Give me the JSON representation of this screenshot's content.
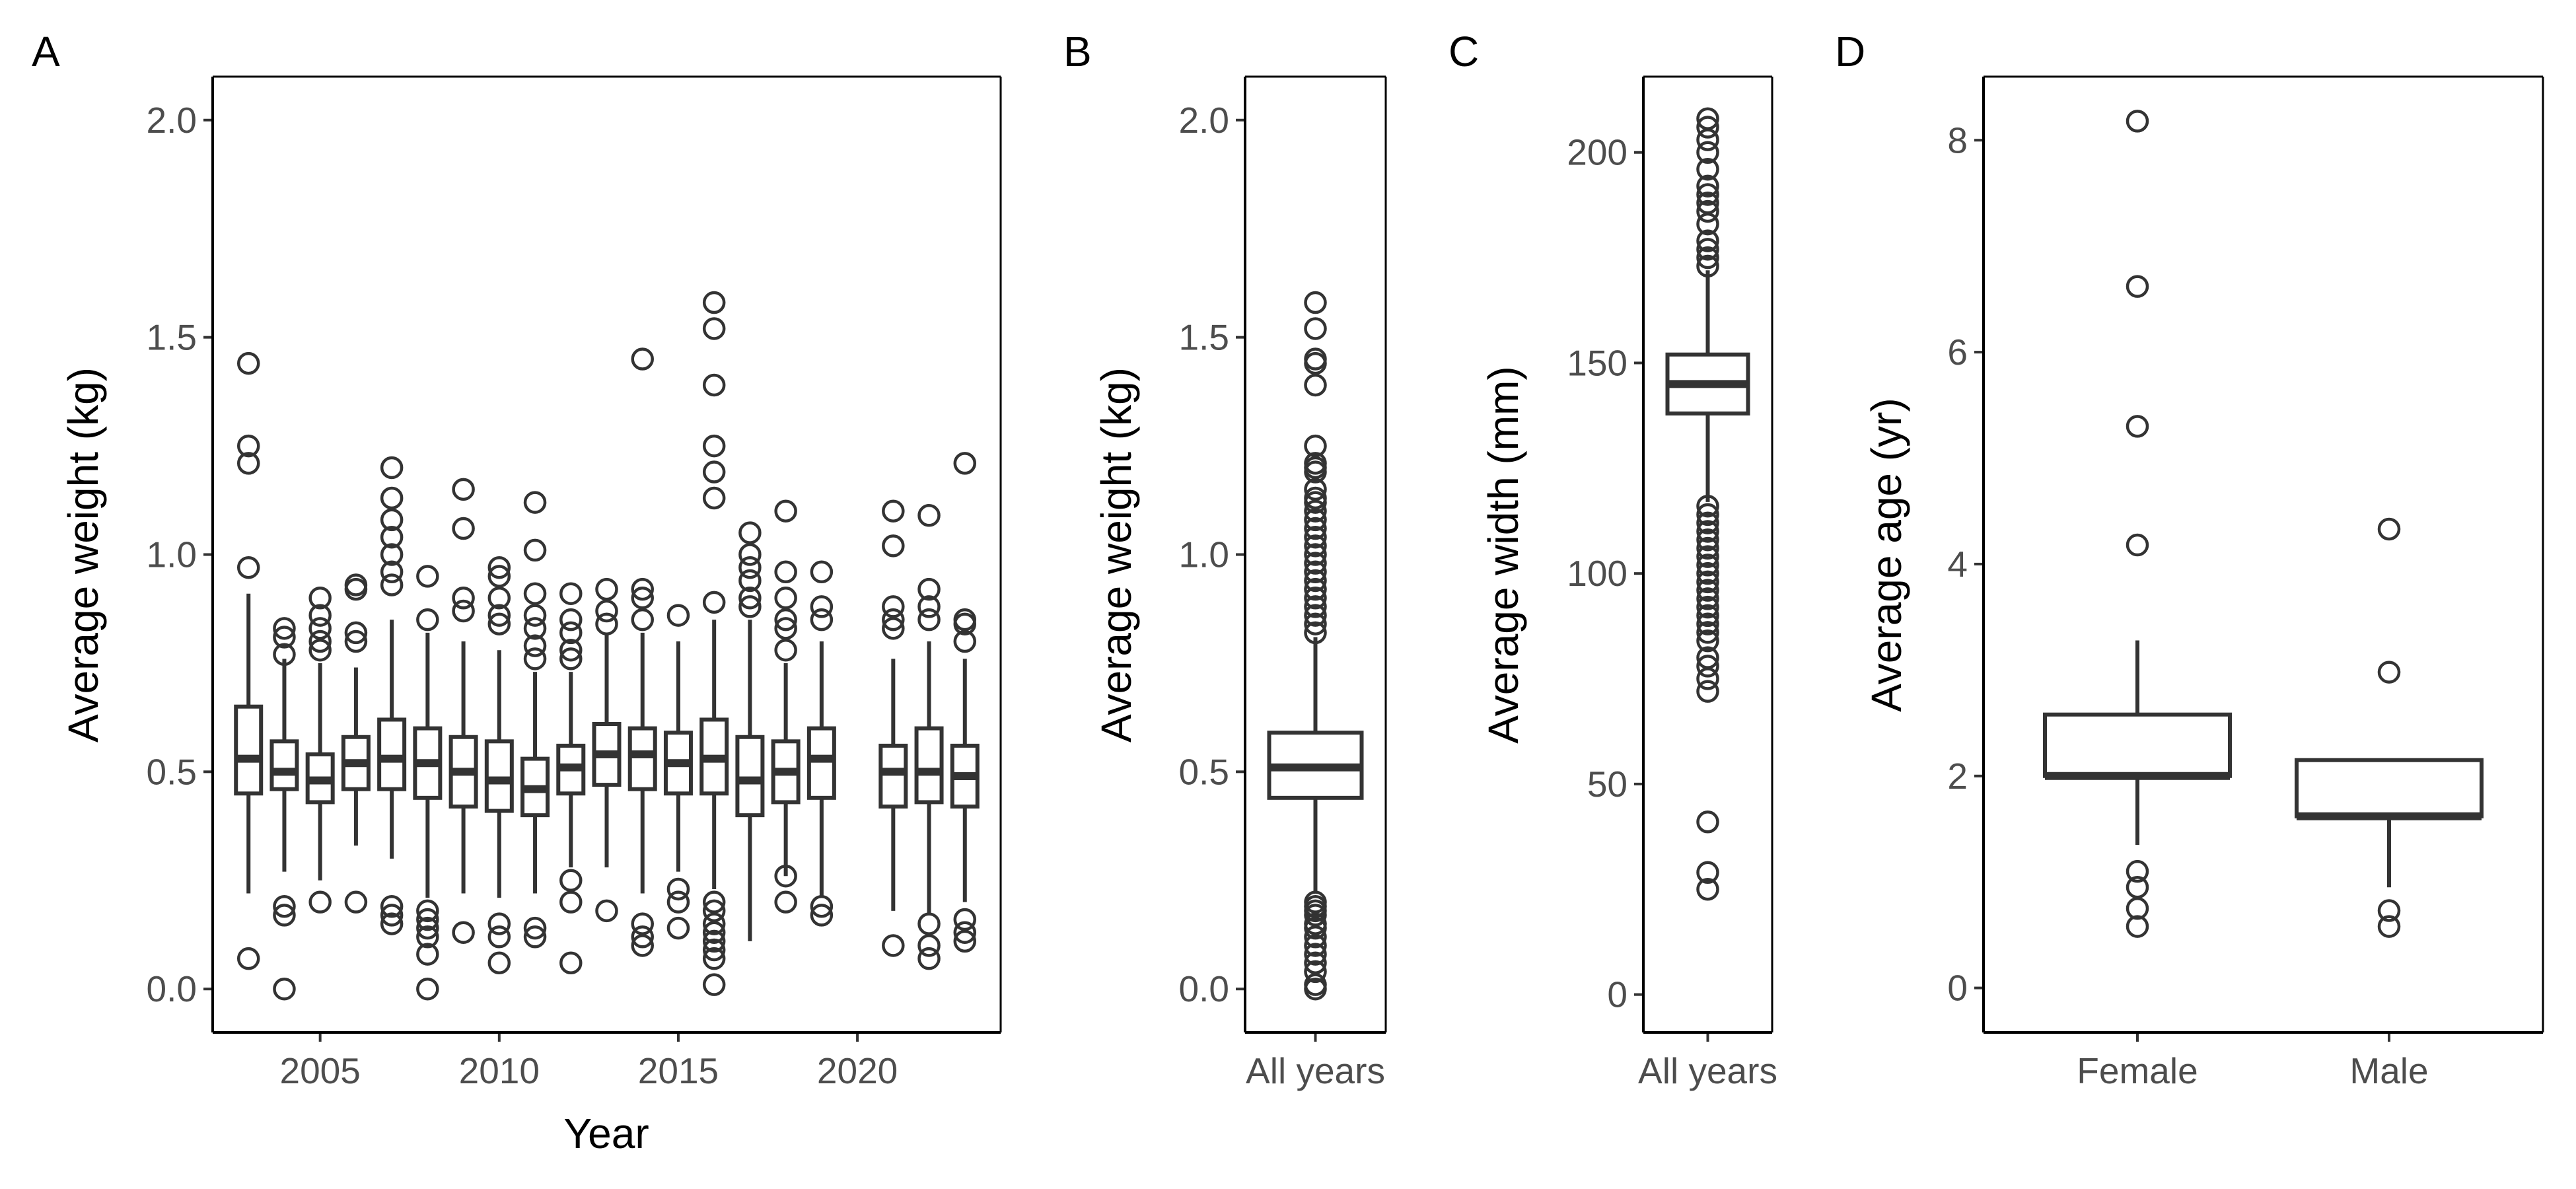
{
  "chart_data": [
    {
      "panel": "A",
      "type": "box",
      "xlabel": "Year",
      "ylabel": "Average weight (kg)",
      "ylim": [
        -0.1,
        2.1
      ],
      "xlim": [
        2002,
        2024
      ],
      "yticks": [
        0.0,
        0.5,
        1.0,
        1.5,
        2.0
      ],
      "yticklabels": [
        "0.0",
        "0.5",
        "1.0",
        "1.5",
        "2.0"
      ],
      "xticks": [
        2005,
        2010,
        2015,
        2020
      ],
      "xticklabels": [
        "2005",
        "2010",
        "2015",
        "2020"
      ],
      "boxes": [
        {
          "x": 2003,
          "q1": 0.45,
          "median": 0.53,
          "q3": 0.65,
          "lo": 0.22,
          "hi": 0.91,
          "outliers": [
            0.07,
            0.97,
            1.21,
            1.25,
            1.44
          ]
        },
        {
          "x": 2004,
          "q1": 0.46,
          "median": 0.5,
          "q3": 0.57,
          "lo": 0.27,
          "hi": 0.76,
          "outliers": [
            0.0,
            0.17,
            0.19,
            0.77,
            0.81,
            0.83
          ]
        },
        {
          "x": 2005,
          "q1": 0.43,
          "median": 0.48,
          "q3": 0.54,
          "lo": 0.25,
          "hi": 0.75,
          "outliers": [
            0.2,
            0.78,
            0.8,
            0.83,
            0.86,
            0.9
          ]
        },
        {
          "x": 2006,
          "q1": 0.46,
          "median": 0.52,
          "q3": 0.58,
          "lo": 0.33,
          "hi": 0.74,
          "outliers": [
            0.2,
            0.8,
            0.82,
            0.92,
            0.93
          ]
        },
        {
          "x": 2007,
          "q1": 0.46,
          "median": 0.53,
          "q3": 0.62,
          "lo": 0.3,
          "hi": 0.85,
          "outliers": [
            0.15,
            0.17,
            0.19,
            0.93,
            0.96,
            1.0,
            1.04,
            1.08,
            1.13,
            1.2
          ]
        },
        {
          "x": 2008,
          "q1": 0.44,
          "median": 0.52,
          "q3": 0.6,
          "lo": 0.21,
          "hi": 0.82,
          "outliers": [
            0.0,
            0.08,
            0.12,
            0.14,
            0.16,
            0.18,
            0.85,
            0.95
          ]
        },
        {
          "x": 2009,
          "q1": 0.42,
          "median": 0.5,
          "q3": 0.58,
          "lo": 0.22,
          "hi": 0.8,
          "outliers": [
            0.13,
            0.87,
            0.9,
            1.06,
            1.15
          ]
        },
        {
          "x": 2010,
          "q1": 0.41,
          "median": 0.48,
          "q3": 0.57,
          "lo": 0.21,
          "hi": 0.78,
          "outliers": [
            0.06,
            0.12,
            0.15,
            0.84,
            0.86,
            0.9,
            0.95,
            0.97
          ]
        },
        {
          "x": 2011,
          "q1": 0.4,
          "median": 0.46,
          "q3": 0.53,
          "lo": 0.22,
          "hi": 0.73,
          "outliers": [
            0.12,
            0.14,
            0.76,
            0.79,
            0.83,
            0.86,
            0.91,
            1.01,
            1.12
          ]
        },
        {
          "x": 2012,
          "q1": 0.45,
          "median": 0.51,
          "q3": 0.56,
          "lo": 0.28,
          "hi": 0.73,
          "outliers": [
            0.06,
            0.2,
            0.25,
            0.76,
            0.78,
            0.82,
            0.85,
            0.91
          ]
        },
        {
          "x": 2013,
          "q1": 0.47,
          "median": 0.54,
          "q3": 0.61,
          "lo": 0.28,
          "hi": 0.82,
          "outliers": [
            0.18,
            0.84,
            0.87,
            0.92
          ]
        },
        {
          "x": 2014,
          "q1": 0.46,
          "median": 0.54,
          "q3": 0.6,
          "lo": 0.22,
          "hi": 0.82,
          "outliers": [
            0.1,
            0.12,
            0.15,
            0.85,
            0.9,
            0.92,
            1.45
          ]
        },
        {
          "x": 2015,
          "q1": 0.45,
          "median": 0.52,
          "q3": 0.59,
          "lo": 0.27,
          "hi": 0.8,
          "outliers": [
            0.14,
            0.2,
            0.23,
            0.86
          ]
        },
        {
          "x": 2016,
          "q1": 0.45,
          "median": 0.53,
          "q3": 0.62,
          "lo": 0.23,
          "hi": 0.85,
          "outliers": [
            0.01,
            0.07,
            0.09,
            0.11,
            0.13,
            0.15,
            0.18,
            0.2,
            0.89,
            1.13,
            1.19,
            1.25,
            1.39,
            1.52,
            1.58
          ]
        },
        {
          "x": 2017,
          "q1": 0.4,
          "median": 0.48,
          "q3": 0.58,
          "lo": 0.11,
          "hi": 0.85,
          "outliers": [
            0.88,
            0.9,
            0.94,
            0.97,
            1.0,
            1.05
          ]
        },
        {
          "x": 2018,
          "q1": 0.43,
          "median": 0.5,
          "q3": 0.57,
          "lo": 0.26,
          "hi": 0.75,
          "outliers": [
            0.2,
            0.26,
            0.78,
            0.83,
            0.85,
            0.9,
            0.96,
            1.1
          ]
        },
        {
          "x": 2019,
          "q1": 0.44,
          "median": 0.53,
          "q3": 0.6,
          "lo": 0.21,
          "hi": 0.8,
          "outliers": [
            0.17,
            0.19,
            0.85,
            0.88,
            0.96
          ]
        },
        {
          "x": 2021,
          "q1": 0.42,
          "median": 0.5,
          "q3": 0.56,
          "lo": 0.18,
          "hi": 0.76,
          "outliers": [
            0.1,
            0.83,
            0.85,
            0.88,
            1.02,
            1.1
          ]
        },
        {
          "x": 2022,
          "q1": 0.43,
          "median": 0.5,
          "q3": 0.6,
          "lo": 0.17,
          "hi": 0.8,
          "outliers": [
            0.07,
            0.1,
            0.15,
            0.85,
            0.88,
            0.92,
            1.09
          ]
        },
        {
          "x": 2023,
          "q1": 0.42,
          "median": 0.49,
          "q3": 0.56,
          "lo": 0.2,
          "hi": 0.76,
          "outliers": [
            0.11,
            0.13,
            0.16,
            0.8,
            0.84,
            0.85,
            1.21
          ]
        }
      ]
    },
    {
      "panel": "B",
      "type": "box",
      "xlabel": "",
      "ylabel": "Average weight (kg)",
      "ylim": [
        -0.1,
        2.1
      ],
      "yticks": [
        0.0,
        0.5,
        1.0,
        1.5,
        2.0
      ],
      "yticklabels": [
        "0.0",
        "0.5",
        "1.0",
        "1.5",
        "2.0"
      ],
      "categories": [
        "All years"
      ],
      "boxes": [
        {
          "x": "All years",
          "q1": 0.44,
          "median": 0.51,
          "q3": 0.59,
          "lo": 0.22,
          "hi": 0.81,
          "outliers": [
            0.0,
            0.01,
            0.04,
            0.06,
            0.08,
            0.1,
            0.12,
            0.14,
            0.15,
            0.17,
            0.18,
            0.19,
            0.2,
            0.82,
            0.84,
            0.86,
            0.88,
            0.9,
            0.92,
            0.94,
            0.96,
            0.98,
            1.0,
            1.02,
            1.04,
            1.06,
            1.08,
            1.1,
            1.12,
            1.13,
            1.15,
            1.19,
            1.2,
            1.21,
            1.25,
            1.39,
            1.44,
            1.45,
            1.52,
            1.58
          ]
        }
      ]
    },
    {
      "panel": "C",
      "type": "box",
      "xlabel": "",
      "ylabel": "Average width (mm)",
      "ylim": [
        -9,
        218
      ],
      "yticks": [
        0,
        50,
        100,
        150,
        200
      ],
      "yticklabels": [
        "0",
        "50",
        "100",
        "150",
        "200"
      ],
      "categories": [
        "All years"
      ],
      "boxes": [
        {
          "x": "All years",
          "q1": 138,
          "median": 145,
          "q3": 152,
          "lo": 117,
          "hi": 172,
          "outliers": [
            25,
            29,
            41,
            72,
            75,
            78,
            80,
            84,
            86,
            88,
            90,
            92,
            94,
            96,
            98,
            100,
            102,
            104,
            106,
            108,
            110,
            112,
            114,
            116,
            173,
            175,
            177,
            179,
            183,
            186,
            188,
            190,
            192,
            196,
            200,
            203,
            206,
            208
          ]
        }
      ]
    },
    {
      "panel": "D",
      "type": "box",
      "xlabel": "",
      "ylabel": "Average age (yr)",
      "ylim": [
        -0.42,
        8.6
      ],
      "yticks": [
        0,
        2,
        4,
        6,
        8
      ],
      "yticklabels": [
        "0",
        "2",
        "4",
        "6",
        "8"
      ],
      "categories": [
        "Female",
        "Male"
      ],
      "boxes": [
        {
          "x": "Female",
          "q1": 2.0,
          "median": 2.0,
          "q3": 2.58,
          "lo": 1.35,
          "hi": 3.28,
          "outliers": [
            0.58,
            0.75,
            0.95,
            1.1,
            4.18,
            5.3,
            6.62,
            8.18
          ],
          "fill": "#F8766D"
        },
        {
          "x": "Male",
          "q1": 1.62,
          "median": 1.62,
          "q3": 2.15,
          "lo": 0.95,
          "hi": 2.15,
          "outliers": [
            0.58,
            0.73,
            2.98,
            4.33
          ],
          "fill": "#00BFC4"
        }
      ]
    }
  ],
  "colors": {
    "female": "#F8766D",
    "male": "#00BFC4",
    "ink": "#333333"
  }
}
